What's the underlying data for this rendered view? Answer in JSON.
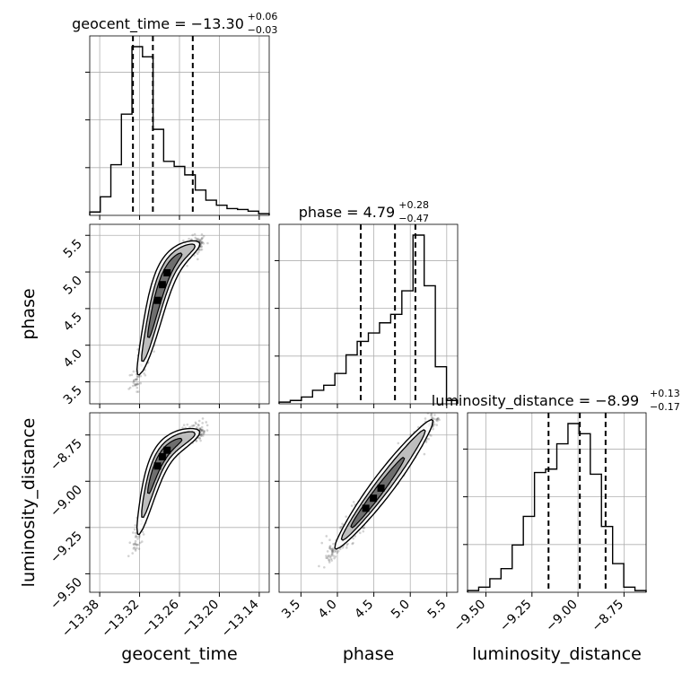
{
  "chart_data": {
    "type": "corner",
    "parameters": [
      {
        "name": "geocent_time",
        "range": [
          -13.395,
          -13.125
        ],
        "ticks": [
          -13.38,
          -13.32,
          -13.26,
          -13.2,
          -13.14
        ],
        "tick_labels": [
          "−13.38",
          "−13.32",
          "−13.26",
          "−13.20",
          "−13.14"
        ],
        "title": "geocent_time = −13.30",
        "sup": "+0.06",
        "sub": "−0.03",
        "quantiles": [
          -13.33,
          -13.3,
          -13.24
        ],
        "hist_counts": [
          0.02,
          0.11,
          0.3,
          0.6,
          1.0,
          0.94,
          0.51,
          0.32,
          0.29,
          0.24,
          0.15,
          0.09,
          0.06,
          0.04,
          0.035,
          0.025,
          0.01
        ]
      },
      {
        "name": "phase",
        "range": [
          3.2,
          5.65
        ],
        "ticks": [
          3.5,
          4.0,
          4.5,
          5.0,
          5.5
        ],
        "tick_labels": [
          "3.5",
          "4.0",
          "4.5",
          "5.0",
          "5.5"
        ],
        "title": "phase = 4.79",
        "sup": "+0.28",
        "sub": "−0.47",
        "quantiles": [
          4.32,
          4.79,
          5.07
        ],
        "hist_counts": [
          0.01,
          0.02,
          0.04,
          0.08,
          0.11,
          0.18,
          0.29,
          0.37,
          0.42,
          0.48,
          0.53,
          0.67,
          1.0,
          0.7,
          0.22,
          0.02
        ]
      },
      {
        "name": "luminosity_distance",
        "range": [
          -9.6,
          -8.63
        ],
        "ticks": [
          -9.5,
          -9.25,
          -9.0,
          -8.75
        ],
        "tick_labels": [
          "−9.50",
          "−9.25",
          "−9.00",
          "−8.75"
        ],
        "title": "luminosity_distance = −8.99",
        "sup": "+0.13",
        "sub": "−0.17",
        "quantiles": [
          -9.16,
          -8.99,
          -8.85
        ],
        "hist_counts": [
          0.01,
          0.03,
          0.08,
          0.14,
          0.28,
          0.45,
          0.71,
          0.73,
          0.88,
          1.0,
          0.94,
          0.7,
          0.39,
          0.17,
          0.03,
          0.01
        ]
      }
    ],
    "y_tick_labels_rows": {
      "phase": [
        "3.5",
        "4.0",
        "4.5",
        "5.0",
        "5.5"
      ],
      "luminosity_distance": [
        "−9.50",
        "−9.25",
        "−9.00",
        "−8.75"
      ]
    },
    "axis_labels": {
      "x": [
        "geocent_time",
        "phase",
        "luminosity_distance"
      ],
      "y": [
        "phase",
        "luminosity_distance"
      ]
    },
    "grid": true
  }
}
